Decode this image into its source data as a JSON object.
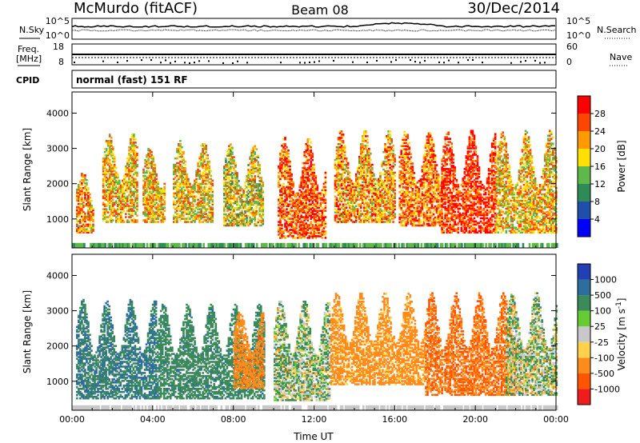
{
  "header": {
    "station": "McMurdo (fitACF)",
    "beam": "Beam 08",
    "date": "30/Dec/2014"
  },
  "noise_panel": {
    "left_label": "N.Sky",
    "right_label": "N.Search",
    "left_ticks": [
      "10^5",
      "10^0"
    ],
    "right_ticks": [
      "10^5",
      "10^0"
    ]
  },
  "freq_panel": {
    "left_label_line1": "Freq.",
    "left_label_line2": "[MHz]",
    "left_ticks": [
      "18",
      "8"
    ],
    "right_label": "Nave",
    "right_ticks": [
      "60",
      "0"
    ]
  },
  "cpid": {
    "label": "CPID",
    "mode": "normal (fast) 151 RF"
  },
  "colors": {
    "power_scale": [
      "#0000ff",
      "#1f4fa8",
      "#2e8b57",
      "#5fb84a",
      "#ffe000",
      "#ff9a00",
      "#ff4500",
      "#ff0000"
    ],
    "velocity_scale": [
      "#2240b4",
      "#2e6e9e",
      "#3a8a5a",
      "#66cc33",
      "#c8c8c8",
      "#ffd24d",
      "#ff8c1a",
      "#ff5500",
      "#ee1c1c"
    ],
    "power_dominant": "#2e7bbd",
    "velocity_dominant": "#f28c28"
  },
  "chart_data": [
    {
      "type": "heatmap",
      "title": "Power",
      "xlabel": "Time UT",
      "ylabel": "Slant Range [km]",
      "xlim": [
        "00:00",
        "24:00"
      ],
      "ylim": [
        180,
        4600
      ],
      "x_ticks": [
        "00:00",
        "04:00",
        "08:00",
        "12:00",
        "16:00",
        "20:00",
        "00:00"
      ],
      "y_ticks": [
        1000,
        2000,
        3000,
        4000
      ],
      "colorbar": {
        "label": "Power [dB]",
        "ticks": [
          "28",
          "24",
          "20",
          "16",
          "12",
          "8",
          "4"
        ],
        "range": [
          0,
          32
        ]
      },
      "echo_regions": [
        {
          "t_start": 0.2,
          "t_end": 1.0,
          "r_low": 600,
          "r_high": 2300,
          "peak_db": 22
        },
        {
          "t_start": 1.5,
          "t_end": 3.2,
          "r_low": 900,
          "r_high": 3400,
          "peak_db": 20
        },
        {
          "t_start": 3.5,
          "t_end": 4.6,
          "r_low": 900,
          "r_high": 3000,
          "peak_db": 20
        },
        {
          "t_start": 5.0,
          "t_end": 7.0,
          "r_low": 900,
          "r_high": 3200,
          "peak_db": 20
        },
        {
          "t_start": 7.5,
          "t_end": 9.5,
          "r_low": 800,
          "r_high": 3100,
          "peak_db": 18
        },
        {
          "t_start": 10.2,
          "t_end": 12.6,
          "r_low": 450,
          "r_high": 3300,
          "peak_db": 26
        },
        {
          "t_start": 13.0,
          "t_end": 16.0,
          "r_low": 900,
          "r_high": 3500,
          "peak_db": 22
        },
        {
          "t_start": 16.2,
          "t_end": 18.3,
          "r_low": 800,
          "r_high": 3500,
          "peak_db": 24
        },
        {
          "t_start": 18.3,
          "t_end": 21.0,
          "r_low": 600,
          "r_high": 3500,
          "peak_db": 28
        },
        {
          "t_start": 21.0,
          "t_end": 24.0,
          "r_low": 600,
          "r_high": 3500,
          "peak_db": 20
        }
      ]
    },
    {
      "type": "heatmap",
      "title": "Velocity",
      "xlabel": "Time UT",
      "ylabel": "Slant Range [km]",
      "xlim": [
        "00:00",
        "24:00"
      ],
      "ylim": [
        180,
        4600
      ],
      "x_ticks": [
        "00:00",
        "04:00",
        "08:00",
        "12:00",
        "16:00",
        "20:00",
        "00:00"
      ],
      "y_ticks": [
        1000,
        2000,
        3000,
        4000
      ],
      "colorbar": {
        "label": "Velocity [m s^-1]",
        "ticks": [
          "1000",
          "500",
          "100",
          "25",
          "-25",
          "-100",
          "-500",
          "-1000"
        ]
      },
      "echo_regions": [
        {
          "t_start": 0.2,
          "t_end": 4.2,
          "r_low": 500,
          "r_high": 3300,
          "velocity": 300
        },
        {
          "t_start": 4.2,
          "t_end": 9.5,
          "r_low": 500,
          "r_high": 3200,
          "velocity": 200
        },
        {
          "t_start": 8.0,
          "t_end": 9.5,
          "r_low": 800,
          "r_high": 3000,
          "velocity": -200
        },
        {
          "t_start": 10.0,
          "t_end": 12.8,
          "r_low": 450,
          "r_high": 3300,
          "velocity": 50
        },
        {
          "t_start": 12.8,
          "t_end": 17.5,
          "r_low": 900,
          "r_high": 3500,
          "velocity": -150
        },
        {
          "t_start": 17.5,
          "t_end": 22.0,
          "r_low": 600,
          "r_high": 3500,
          "velocity": -300
        },
        {
          "t_start": 21.5,
          "t_end": 24.0,
          "r_low": 600,
          "r_high": 3500,
          "velocity": 30
        }
      ]
    }
  ]
}
